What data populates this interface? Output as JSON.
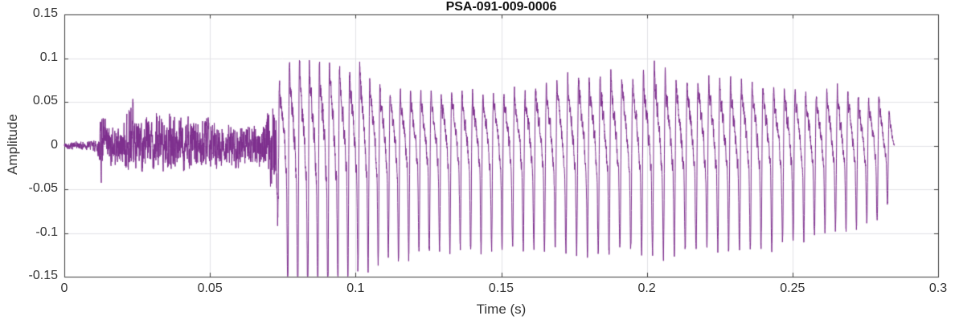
{
  "chart_data": {
    "type": "line",
    "title": "PSA-091-009-0006",
    "xlabel": "Time (s)",
    "ylabel": "Amplitude",
    "xlim": [
      0,
      0.3
    ],
    "ylim": [
      -0.15,
      0.15
    ],
    "xticks": [
      0,
      0.05,
      0.1,
      0.15,
      0.2,
      0.25,
      0.3
    ],
    "xtick_labels": [
      "0",
      "0.05",
      "0.1",
      "0.15",
      "0.2",
      "0.25",
      "0.3"
    ],
    "yticks": [
      -0.15,
      -0.1,
      -0.05,
      0,
      0.05,
      0.1,
      0.15
    ],
    "ytick_labels": [
      "-0.15",
      "-0.1",
      "-0.05",
      "0",
      "0.05",
      "0.1",
      "0.15"
    ],
    "grid": true,
    "line_color": "#7E2F8E",
    "grid_color": "#e2e2e6",
    "axis_color": "#3a3a3a",
    "background": "#ffffff",
    "series_name": "audio-waveform",
    "signal": {
      "t_start": 0,
      "t_end": 0.285,
      "voiced_onset_s": 0.0705,
      "fundamental_hz_base": 265,
      "envelope_t_pos_neg": [
        [
          0.0,
          0.004,
          0.004
        ],
        [
          0.01,
          0.006,
          0.006
        ],
        [
          0.0115,
          0.01,
          0.01
        ],
        [
          0.0125,
          0.046,
          0.042
        ],
        [
          0.014,
          0.03,
          0.028
        ],
        [
          0.017,
          0.022,
          0.022
        ],
        [
          0.02,
          0.028,
          0.026
        ],
        [
          0.022,
          0.066,
          0.04
        ],
        [
          0.024,
          0.038,
          0.034
        ],
        [
          0.028,
          0.035,
          0.03
        ],
        [
          0.032,
          0.04,
          0.028
        ],
        [
          0.038,
          0.036,
          0.03
        ],
        [
          0.044,
          0.032,
          0.03
        ],
        [
          0.05,
          0.03,
          0.028
        ],
        [
          0.056,
          0.026,
          0.026
        ],
        [
          0.062,
          0.024,
          0.022
        ],
        [
          0.066,
          0.028,
          0.024
        ],
        [
          0.069,
          0.03,
          0.028
        ],
        [
          0.0715,
          0.07,
          0.06
        ],
        [
          0.074,
          0.125,
          0.11
        ],
        [
          0.078,
          0.143,
          0.15
        ],
        [
          0.082,
          0.146,
          0.152
        ],
        [
          0.086,
          0.14,
          0.15
        ],
        [
          0.09,
          0.144,
          0.148
        ],
        [
          0.094,
          0.138,
          0.135
        ],
        [
          0.098,
          0.13,
          0.128
        ],
        [
          0.102,
          0.14,
          0.118
        ],
        [
          0.106,
          0.11,
          0.112
        ],
        [
          0.112,
          0.095,
          0.11
        ],
        [
          0.12,
          0.092,
          0.106
        ],
        [
          0.128,
          0.09,
          0.102
        ],
        [
          0.136,
          0.094,
          0.1
        ],
        [
          0.144,
          0.09,
          0.104
        ],
        [
          0.152,
          0.092,
          0.1
        ],
        [
          0.16,
          0.096,
          0.102
        ],
        [
          0.168,
          0.105,
          0.1
        ],
        [
          0.174,
          0.124,
          0.102
        ],
        [
          0.182,
          0.118,
          0.104
        ],
        [
          0.19,
          0.12,
          0.1
        ],
        [
          0.196,
          0.116,
          0.102
        ],
        [
          0.203,
          0.136,
          0.104
        ],
        [
          0.21,
          0.114,
          0.102
        ],
        [
          0.218,
          0.116,
          0.104
        ],
        [
          0.226,
          0.112,
          0.102
        ],
        [
          0.234,
          0.11,
          0.1
        ],
        [
          0.242,
          0.106,
          0.098
        ],
        [
          0.25,
          0.096,
          0.094
        ],
        [
          0.258,
          0.09,
          0.086
        ],
        [
          0.266,
          0.1,
          0.082
        ],
        [
          0.274,
          0.082,
          0.076
        ],
        [
          0.28,
          0.086,
          0.072
        ],
        [
          0.284,
          0.05,
          0.045
        ],
        [
          0.285,
          0.01,
          0.01
        ]
      ]
    }
  }
}
